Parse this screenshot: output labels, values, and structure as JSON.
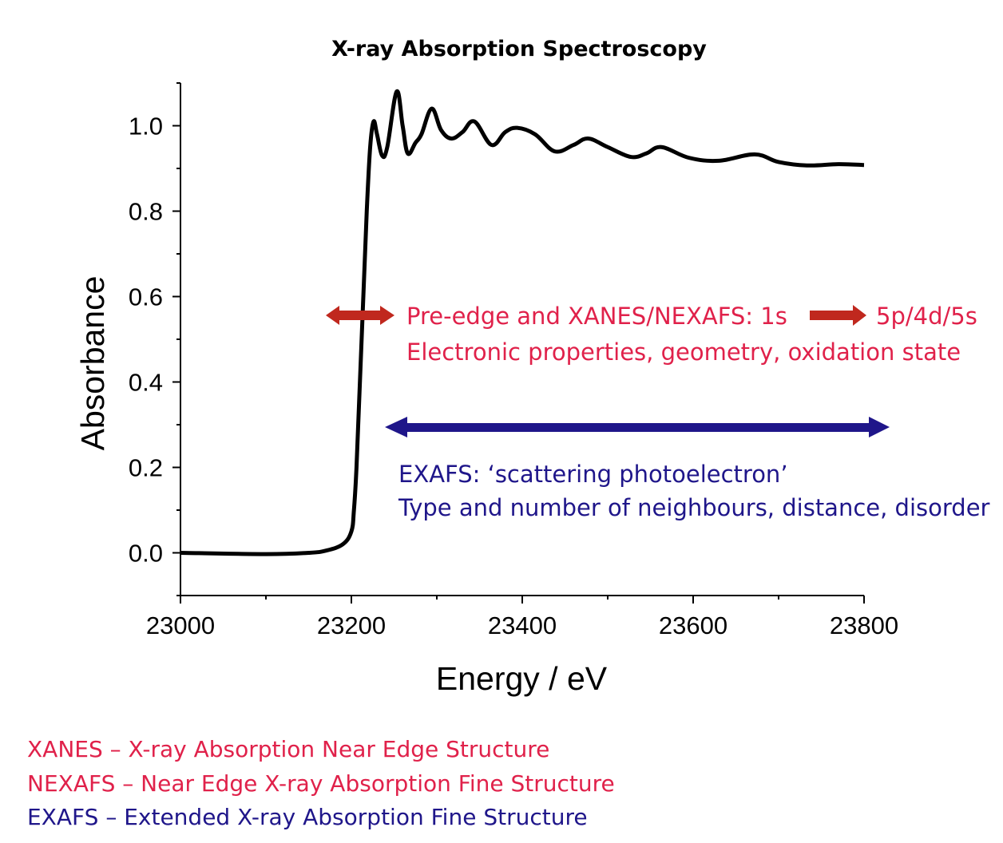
{
  "chart_data": {
    "type": "line",
    "title": "X-ray Absorption Spectroscopy",
    "xlabel": "Energy / eV",
    "ylabel": "Absorbance",
    "xlim": [
      23000,
      23800
    ],
    "ylim": [
      -0.1,
      1.1
    ],
    "xticks": [
      "23000",
      "23200",
      "23400",
      "23600",
      "23800"
    ],
    "yticks": [
      "0.0",
      "0.2",
      "0.4",
      "0.6",
      "0.8",
      "1.0"
    ],
    "grid": false,
    "line_color": "#000000",
    "x": [
      23000,
      23100,
      23150,
      23170,
      23190,
      23200,
      23203,
      23206,
      23210,
      23214,
      23218,
      23222,
      23226,
      23230,
      23236,
      23242,
      23253,
      23260,
      23266,
      23275,
      23282,
      23294,
      23305,
      23317,
      23330,
      23344,
      23364,
      23380,
      23394,
      23415,
      23438,
      23460,
      23477,
      23500,
      23527,
      23545,
      23563,
      23595,
      23630,
      23672,
      23700,
      23733,
      23770,
      23800
    ],
    "y": [
      0.0,
      -0.003,
      0.0,
      0.005,
      0.02,
      0.05,
      0.1,
      0.2,
      0.4,
      0.6,
      0.8,
      0.95,
      1.01,
      0.98,
      0.93,
      0.95,
      1.08,
      1.0,
      0.935,
      0.96,
      0.98,
      1.04,
      0.99,
      0.97,
      0.985,
      1.01,
      0.955,
      0.985,
      0.995,
      0.98,
      0.94,
      0.955,
      0.97,
      0.95,
      0.927,
      0.935,
      0.95,
      0.925,
      0.918,
      0.933,
      0.915,
      0.907,
      0.91,
      0.908
    ],
    "annotations": {
      "xanes_line1_a": "Pre-edge and XANES/NEXAFS: 1s",
      "xanes_line1_b": "5p/4d/5s",
      "xanes_line2": "Electronic properties, geometry, oxidation state",
      "exafs_line1": "EXAFS: ‘scattering photoelectron’",
      "exafs_line2": "Type and number of neighbours, distance, disorder",
      "xanes_color": "#e0214a",
      "xanes_arrow_color": "#c0281e",
      "exafs_color": "#1f168a"
    }
  },
  "footnotes": [
    {
      "text": "XANES – X-ray Absorption Near Edge Structure",
      "color": "#e0214a"
    },
    {
      "text": "NEXAFS – Near Edge X-ray Absorption Fine Structure",
      "color": "#e0214a"
    },
    {
      "text": "EXAFS – Extended X-ray Absorption Fine Structure",
      "color": "#1f168a"
    }
  ]
}
